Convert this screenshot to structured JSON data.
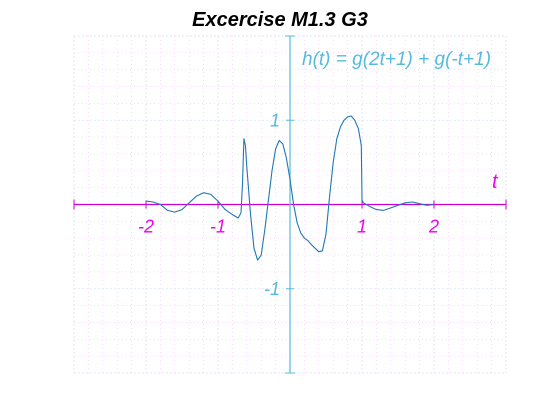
{
  "chart_data": {
    "type": "line",
    "title": "Excercise M1.3 G3",
    "annotation": "h(t) = g(2t+1) + g(-t+1)",
    "xlabel": "t",
    "ylabel": "",
    "xlim": [
      -3,
      3
    ],
    "ylim": [
      -2,
      2
    ],
    "x_ticks": [
      -2,
      -1,
      1,
      2
    ],
    "x_tick_labels": [
      "-2",
      "-1",
      "1",
      "2"
    ],
    "y_ticks": [
      1,
      -1
    ],
    "y_tick_labels": [
      "1",
      "-1"
    ],
    "grid": true,
    "minor_grid": true,
    "colors": {
      "line": "#1f77b4",
      "x_axis": "#cc00cc",
      "y_axis": "#55bbdd",
      "x_text": "#ee00ee",
      "y_text": "#55bbdd",
      "grid": "#d6e4f5",
      "minor_grid": "#f0c8f0"
    },
    "series": [
      {
        "x": [
          -2,
          -1.9,
          -1.8,
          -1.7,
          -1.6,
          -1.5,
          -1.4,
          -1.3,
          -1.2,
          -1.1,
          -1.0,
          -0.9,
          -0.8,
          -0.72,
          -0.68,
          -0.66,
          -0.64,
          -0.62,
          -0.6,
          -0.55,
          -0.5,
          -0.45,
          -0.4,
          -0.35,
          -0.3,
          -0.25,
          -0.2,
          -0.15,
          -0.1,
          -0.05,
          0.0,
          0.05,
          0.1,
          0.15,
          0.2,
          0.25,
          0.3,
          0.35,
          0.4,
          0.45,
          0.5,
          0.55,
          0.6,
          0.65,
          0.7,
          0.75,
          0.8,
          0.85,
          0.9,
          0.95,
          0.99,
          1.0,
          1.02,
          1.1,
          1.2,
          1.3,
          1.4,
          1.5,
          1.6,
          1.7,
          1.8,
          1.9,
          2.0
        ],
        "y": [
          0.04,
          0.03,
          0.0,
          -0.07,
          -0.09,
          -0.06,
          0.02,
          0.1,
          0.14,
          0.12,
          0.04,
          -0.06,
          -0.12,
          -0.16,
          -0.1,
          0.25,
          0.78,
          0.7,
          0.45,
          -0.1,
          -0.52,
          -0.66,
          -0.6,
          -0.3,
          0.05,
          0.4,
          0.66,
          0.76,
          0.72,
          0.55,
          0.3,
          0.0,
          -0.22,
          -0.34,
          -0.4,
          -0.43,
          -0.48,
          -0.52,
          -0.56,
          -0.55,
          -0.35,
          0.1,
          0.5,
          0.78,
          0.92,
          1.0,
          1.04,
          1.05,
          1.0,
          0.9,
          0.7,
          0.05,
          0.02,
          -0.02,
          -0.06,
          -0.07,
          -0.04,
          -0.01,
          0.02,
          0.03,
          0.01,
          -0.01,
          0.0
        ]
      }
    ]
  }
}
